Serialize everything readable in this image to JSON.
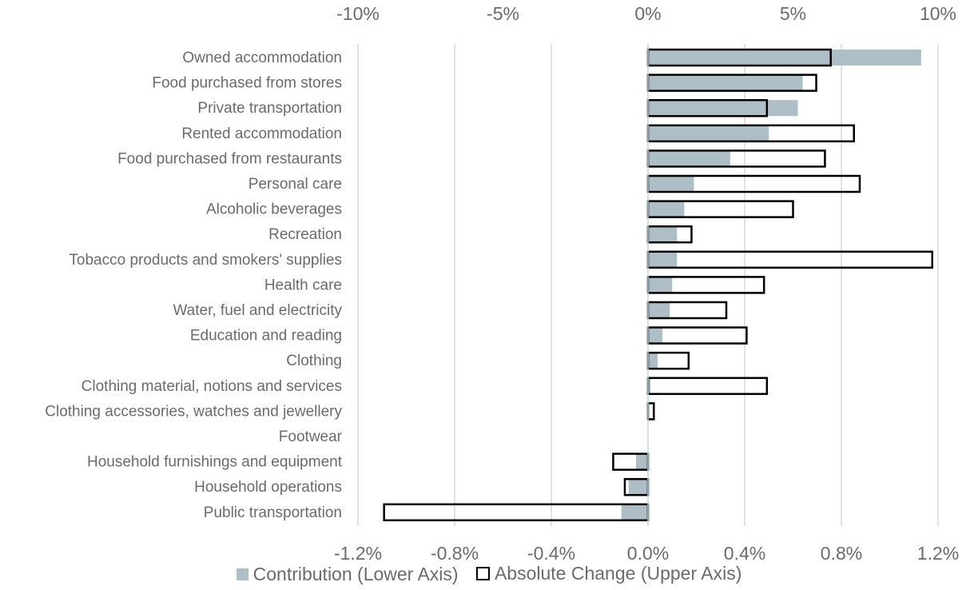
{
  "chart_data": {
    "type": "bar",
    "orientation": "horizontal",
    "categories": [
      "Owned accommodation",
      "Food purchased from stores",
      "Private transportation",
      "Rented accommodation",
      "Food purchased from restaurants",
      "Personal care",
      "Alcoholic beverages",
      "Recreation",
      "Tobacco products and smokers' supplies",
      "Health care",
      "Water, fuel and electricity",
      "Education and reading",
      "Clothing",
      "Clothing material, notions and services",
      "Clothing accessories, watches and jewellery",
      "Footwear",
      "Household furnishings and equipment",
      "Household operations",
      "Public transportation"
    ],
    "series": [
      {
        "name": "Contribution (Lower Axis)",
        "axis": "lower",
        "color": "#aebec6",
        "values": [
          1.13,
          0.64,
          0.62,
          0.5,
          0.34,
          0.19,
          0.15,
          0.12,
          0.12,
          0.1,
          0.09,
          0.06,
          0.04,
          0.01,
          0.0,
          0.0,
          -0.05,
          -0.08,
          -0.11
        ]
      },
      {
        "name": "Absolute Change (Upper Axis)",
        "axis": "upper",
        "color": "#000000",
        "values": [
          6.3,
          5.8,
          4.1,
          7.1,
          6.1,
          7.3,
          5.0,
          1.5,
          9.8,
          4.0,
          2.7,
          3.4,
          1.4,
          4.1,
          0.2,
          0.0,
          -1.2,
          -0.8,
          -9.1
        ]
      }
    ],
    "lower_axis": {
      "ticks": [
        "-1.2%",
        "-0.8%",
        "-0.4%",
        "0.0%",
        "0.4%",
        "0.8%",
        "1.2%"
      ],
      "range": [
        -1.2,
        1.2
      ]
    },
    "upper_axis": {
      "ticks": [
        "-10%",
        "-5%",
        "0%",
        "5%",
        "10%"
      ],
      "range": [
        -10,
        10
      ]
    },
    "grid": true,
    "legend_position": "bottom"
  }
}
